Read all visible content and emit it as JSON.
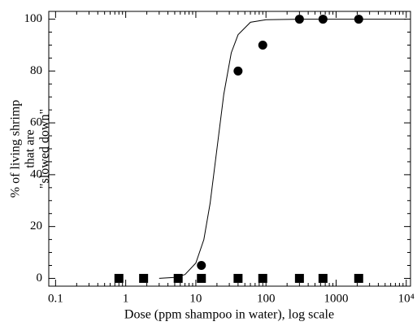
{
  "chart_data": {
    "type": "scatter",
    "xlabel": "Dose (ppm shampoo in water), log scale",
    "ylabel": [
      "% of living shrimp",
      "that are",
      "\"slowed down\""
    ],
    "xscale": "log",
    "xlim": [
      0.08,
      11500
    ],
    "ylim": [
      -3,
      103
    ],
    "xticks": [
      0.1,
      1,
      10,
      100,
      1000,
      {
        "value": 10000,
        "label": "10⁴"
      }
    ],
    "yticks": [
      0,
      20,
      40,
      60,
      80,
      100
    ],
    "series": [
      {
        "marker": "circle",
        "color": "#000000",
        "x": [
          12,
          40,
          90,
          300,
          650,
          2100
        ],
        "values": [
          5,
          80,
          90,
          100,
          100,
          100
        ]
      },
      {
        "marker": "square",
        "color": "#000000",
        "x": [
          0.8,
          1.8,
          5.6,
          12,
          40,
          90,
          300,
          650,
          2100
        ],
        "values": [
          0,
          0,
          0,
          0,
          0,
          0,
          0,
          0,
          0
        ]
      },
      {
        "marker": "line",
        "color": "#000000",
        "x": [
          3,
          5,
          7,
          10,
          13,
          16,
          20,
          25,
          32,
          40,
          60,
          100,
          300,
          10000
        ],
        "values": [
          0,
          0.4,
          1.5,
          5.9,
          15,
          29,
          50,
          71,
          87,
          94,
          98.8,
          99.8,
          100,
          100
        ]
      }
    ]
  }
}
